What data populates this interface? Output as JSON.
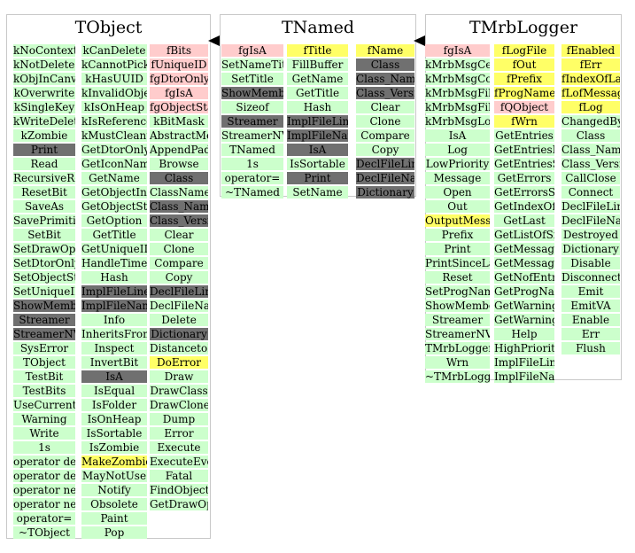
{
  "colors": {
    "method": "#ccffcc",
    "inherited": "#707070",
    "data_member": "#ffcccc",
    "highlight": "#ffff66",
    "frame": "#c8c8c8"
  },
  "classes": [
    {
      "name": "TObject",
      "columns": [
        {
          "cells": [
            {
              "t": "kNoContextMenu",
              "c": "green"
            },
            {
              "t": "kNotDeleted",
              "c": "green"
            },
            {
              "t": "kObjInCanvas",
              "c": "green"
            },
            {
              "t": "kOverwrite",
              "c": "green"
            },
            {
              "t": "kSingleKey",
              "c": "green"
            },
            {
              "t": "kWriteDelete",
              "c": "green"
            },
            {
              "t": "kZombie",
              "c": "green"
            },
            {
              "t": "Print",
              "c": "gray"
            },
            {
              "t": "Read",
              "c": "green"
            },
            {
              "t": "RecursiveRemove",
              "c": "green"
            },
            {
              "t": "ResetBit",
              "c": "green"
            },
            {
              "t": "SaveAs",
              "c": "green"
            },
            {
              "t": "SavePrimitive",
              "c": "green"
            },
            {
              "t": "SetBit",
              "c": "green"
            },
            {
              "t": "SetDrawOption",
              "c": "green"
            },
            {
              "t": "SetDtorOnly",
              "c": "green"
            },
            {
              "t": "SetObjectStat",
              "c": "green"
            },
            {
              "t": "SetUniqueID",
              "c": "green"
            },
            {
              "t": "ShowMembers",
              "c": "gray"
            },
            {
              "t": "Streamer",
              "c": "gray"
            },
            {
              "t": "StreamerNVirtual",
              "c": "gray"
            },
            {
              "t": "SysError",
              "c": "green"
            },
            {
              "t": "TObject",
              "c": "green"
            },
            {
              "t": "TestBit",
              "c": "green"
            },
            {
              "t": "TestBits",
              "c": "green"
            },
            {
              "t": "UseCurrentStyle",
              "c": "green"
            },
            {
              "t": "Warning",
              "c": "green"
            },
            {
              "t": "Write",
              "c": "green"
            },
            {
              "t": "1s",
              "c": "green"
            },
            {
              "t": "operator delete",
              "c": "green"
            },
            {
              "t": "operator delete[]",
              "c": "green"
            },
            {
              "t": "operator new",
              "c": "green"
            },
            {
              "t": "operator new[]",
              "c": "green"
            },
            {
              "t": "operator=",
              "c": "green"
            },
            {
              "t": "~TObject",
              "c": "green"
            }
          ]
        },
        {
          "cells": [
            {
              "t": "kCanDelete",
              "c": "green"
            },
            {
              "t": "kCannotPick",
              "c": "green"
            },
            {
              "t": "kHasUUID",
              "c": "green"
            },
            {
              "t": "kInvalidObject",
              "c": "green"
            },
            {
              "t": "kIsOnHeap",
              "c": "green"
            },
            {
              "t": "kIsReferenced",
              "c": "green"
            },
            {
              "t": "kMustCleanup",
              "c": "green"
            },
            {
              "t": "GetDtorOnly",
              "c": "green"
            },
            {
              "t": "GetIconName",
              "c": "green"
            },
            {
              "t": "GetName",
              "c": "green"
            },
            {
              "t": "GetObjectInfo",
              "c": "green"
            },
            {
              "t": "GetObjectStat",
              "c": "green"
            },
            {
              "t": "GetOption",
              "c": "green"
            },
            {
              "t": "GetTitle",
              "c": "green"
            },
            {
              "t": "GetUniqueID",
              "c": "green"
            },
            {
              "t": "HandleTimer",
              "c": "green"
            },
            {
              "t": "Hash",
              "c": "green"
            },
            {
              "t": "ImplFileLine",
              "c": "gray"
            },
            {
              "t": "ImplFileName",
              "c": "gray"
            },
            {
              "t": "Info",
              "c": "green"
            },
            {
              "t": "InheritsFrom",
              "c": "green"
            },
            {
              "t": "Inspect",
              "c": "green"
            },
            {
              "t": "InvertBit",
              "c": "green"
            },
            {
              "t": "IsA",
              "c": "gray"
            },
            {
              "t": "IsEqual",
              "c": "green"
            },
            {
              "t": "IsFolder",
              "c": "green"
            },
            {
              "t": "IsOnHeap",
              "c": "green"
            },
            {
              "t": "IsSortable",
              "c": "green"
            },
            {
              "t": "IsZombie",
              "c": "green"
            },
            {
              "t": "MakeZombie",
              "c": "yellow"
            },
            {
              "t": "MayNotUse",
              "c": "green"
            },
            {
              "t": "Notify",
              "c": "green"
            },
            {
              "t": "Obsolete",
              "c": "green"
            },
            {
              "t": "Paint",
              "c": "green"
            },
            {
              "t": "Pop",
              "c": "green"
            }
          ]
        },
        {
          "cells": [
            {
              "t": "fBits",
              "c": "pink"
            },
            {
              "t": "fUniqueID",
              "c": "pink"
            },
            {
              "t": "fgDtorOnly",
              "c": "pink"
            },
            {
              "t": "fgIsA",
              "c": "pink"
            },
            {
              "t": "fgObjectStat",
              "c": "pink"
            },
            {
              "t": "kBitMask",
              "c": "green"
            },
            {
              "t": "AbstractMethod",
              "c": "green"
            },
            {
              "t": "AppendPad",
              "c": "green"
            },
            {
              "t": "Browse",
              "c": "green"
            },
            {
              "t": "Class",
              "c": "gray"
            },
            {
              "t": "ClassName",
              "c": "green"
            },
            {
              "t": "Class_Name",
              "c": "gray"
            },
            {
              "t": "Class_Version",
              "c": "gray"
            },
            {
              "t": "Clear",
              "c": "green"
            },
            {
              "t": "Clone",
              "c": "green"
            },
            {
              "t": "Compare",
              "c": "green"
            },
            {
              "t": "Copy",
              "c": "green"
            },
            {
              "t": "DeclFileLine",
              "c": "gray"
            },
            {
              "t": "DeclFileName",
              "c": "green"
            },
            {
              "t": "Delete",
              "c": "green"
            },
            {
              "t": "Dictionary",
              "c": "gray"
            },
            {
              "t": "DistancetoPrimitive",
              "c": "green"
            },
            {
              "t": "DoError",
              "c": "yellow"
            },
            {
              "t": "Draw",
              "c": "green"
            },
            {
              "t": "DrawClass",
              "c": "green"
            },
            {
              "t": "DrawClone",
              "c": "green"
            },
            {
              "t": "Dump",
              "c": "green"
            },
            {
              "t": "Error",
              "c": "green"
            },
            {
              "t": "Execute",
              "c": "green"
            },
            {
              "t": "ExecuteEvent",
              "c": "green"
            },
            {
              "t": "Fatal",
              "c": "green"
            },
            {
              "t": "FindObject",
              "c": "green"
            },
            {
              "t": "GetDrawOption",
              "c": "green"
            }
          ]
        }
      ]
    },
    {
      "name": "TNamed",
      "columns": [
        {
          "cells": [
            {
              "t": "fgIsA",
              "c": "pink"
            },
            {
              "t": "SetNameTitle",
              "c": "green"
            },
            {
              "t": "SetTitle",
              "c": "green"
            },
            {
              "t": "ShowMembers",
              "c": "gray"
            },
            {
              "t": "Sizeof",
              "c": "green"
            },
            {
              "t": "Streamer",
              "c": "gray"
            },
            {
              "t": "StreamerNVirtual",
              "c": "green"
            },
            {
              "t": "TNamed",
              "c": "green"
            },
            {
              "t": "1s",
              "c": "green"
            },
            {
              "t": "operator=",
              "c": "green"
            },
            {
              "t": "~TNamed",
              "c": "green"
            }
          ]
        },
        {
          "cells": [
            {
              "t": "fTitle",
              "c": "yellow"
            },
            {
              "t": "FillBuffer",
              "c": "green"
            },
            {
              "t": "GetName",
              "c": "green"
            },
            {
              "t": "GetTitle",
              "c": "green"
            },
            {
              "t": "Hash",
              "c": "green"
            },
            {
              "t": "ImplFileLine",
              "c": "gray"
            },
            {
              "t": "ImplFileName",
              "c": "gray"
            },
            {
              "t": "IsA",
              "c": "gray"
            },
            {
              "t": "IsSortable",
              "c": "green"
            },
            {
              "t": "Print",
              "c": "gray"
            },
            {
              "t": "SetName",
              "c": "green"
            }
          ]
        },
        {
          "cells": [
            {
              "t": "fName",
              "c": "yellow"
            },
            {
              "t": "Class",
              "c": "gray"
            },
            {
              "t": "Class_Name",
              "c": "gray"
            },
            {
              "t": "Class_Version",
              "c": "gray"
            },
            {
              "t": "Clear",
              "c": "green"
            },
            {
              "t": "Clone",
              "c": "green"
            },
            {
              "t": "Compare",
              "c": "green"
            },
            {
              "t": "Copy",
              "c": "green"
            },
            {
              "t": "DeclFileLine",
              "c": "gray"
            },
            {
              "t": "DeclFileName",
              "c": "gray"
            },
            {
              "t": "Dictionary",
              "c": "gray"
            }
          ]
        }
      ]
    },
    {
      "name": "TMrbLogger",
      "columns": [
        {
          "cells": [
            {
              "t": "fgIsA",
              "c": "pink"
            },
            {
              "t": "kMrbMsgCerr",
              "c": "green"
            },
            {
              "t": "kMrbMsgCout",
              "c": "green"
            },
            {
              "t": "kMrbMsgFileAppend",
              "c": "green"
            },
            {
              "t": "kMrbMsgFileNew",
              "c": "green"
            },
            {
              "t": "kMrbMsgLog",
              "c": "green"
            },
            {
              "t": "IsA",
              "c": "green"
            },
            {
              "t": "Log",
              "c": "green"
            },
            {
              "t": "LowPriority",
              "c": "green"
            },
            {
              "t": "Message",
              "c": "green"
            },
            {
              "t": "Open",
              "c": "green"
            },
            {
              "t": "Out",
              "c": "green"
            },
            {
              "t": "OutputMessage",
              "c": "yellow"
            },
            {
              "t": "Prefix",
              "c": "green"
            },
            {
              "t": "Print",
              "c": "green"
            },
            {
              "t": "PrintSinceLastCall",
              "c": "green"
            },
            {
              "t": "Reset",
              "c": "green"
            },
            {
              "t": "SetProgName",
              "c": "green"
            },
            {
              "t": "ShowMembers",
              "c": "green"
            },
            {
              "t": "Streamer",
              "c": "green"
            },
            {
              "t": "StreamerNVirtual",
              "c": "green"
            },
            {
              "t": "TMrbLogger",
              "c": "green"
            },
            {
              "t": "Wrn",
              "c": "green"
            },
            {
              "t": "~TMrbLogger",
              "c": "green"
            }
          ]
        },
        {
          "cells": [
            {
              "t": "fLogFile",
              "c": "yellow"
            },
            {
              "t": "fOut",
              "c": "yellow"
            },
            {
              "t": "fPrefix",
              "c": "yellow"
            },
            {
              "t": "fProgName",
              "c": "yellow"
            },
            {
              "t": "fQObject",
              "c": "pink"
            },
            {
              "t": "fWrn",
              "c": "yellow"
            },
            {
              "t": "GetEntries",
              "c": "green"
            },
            {
              "t": "GetEntriesByType",
              "c": "green"
            },
            {
              "t": "GetEntriesSinceLastCall",
              "c": "green"
            },
            {
              "t": "GetErrors",
              "c": "green"
            },
            {
              "t": "GetErrorsSinceLastCall",
              "c": "green"
            },
            {
              "t": "GetIndexOfLastPrinted",
              "c": "green"
            },
            {
              "t": "GetLast",
              "c": "green"
            },
            {
              "t": "GetListOfSignals",
              "c": "green"
            },
            {
              "t": "GetMessages",
              "c": "green"
            },
            {
              "t": "GetMessagesSinceLastCall",
              "c": "green"
            },
            {
              "t": "GetNofEntries",
              "c": "green"
            },
            {
              "t": "GetProgName",
              "c": "green"
            },
            {
              "t": "GetWarnings",
              "c": "green"
            },
            {
              "t": "GetWarningsSinceLastCall",
              "c": "green"
            },
            {
              "t": "Help",
              "c": "green"
            },
            {
              "t": "HighPriority",
              "c": "green"
            },
            {
              "t": "ImplFileLine",
              "c": "green"
            },
            {
              "t": "ImplFileName",
              "c": "green"
            }
          ]
        },
        {
          "cells": [
            {
              "t": "fEnabled",
              "c": "yellow"
            },
            {
              "t": "fErr",
              "c": "yellow"
            },
            {
              "t": "fIndexOfLastPrinted",
              "c": "yellow"
            },
            {
              "t": "fLofMessages",
              "c": "yellow"
            },
            {
              "t": "fLog",
              "c": "yellow"
            },
            {
              "t": "ChangedBy",
              "c": "green"
            },
            {
              "t": "Class",
              "c": "green"
            },
            {
              "t": "Class_Name",
              "c": "green"
            },
            {
              "t": "Class_Version",
              "c": "green"
            },
            {
              "t": "CallClose",
              "c": "green"
            },
            {
              "t": "Connect",
              "c": "green"
            },
            {
              "t": "DeclFileLine",
              "c": "green"
            },
            {
              "t": "DeclFileName",
              "c": "green"
            },
            {
              "t": "Destroyed",
              "c": "green"
            },
            {
              "t": "Dictionary",
              "c": "green"
            },
            {
              "t": "Disable",
              "c": "green"
            },
            {
              "t": "Disconnect",
              "c": "green"
            },
            {
              "t": "Emit",
              "c": "green"
            },
            {
              "t": "EmitVA",
              "c": "green"
            },
            {
              "t": "Enable",
              "c": "green"
            },
            {
              "t": "Err",
              "c": "green"
            },
            {
              "t": "Flush",
              "c": "green"
            }
          ]
        }
      ]
    }
  ]
}
